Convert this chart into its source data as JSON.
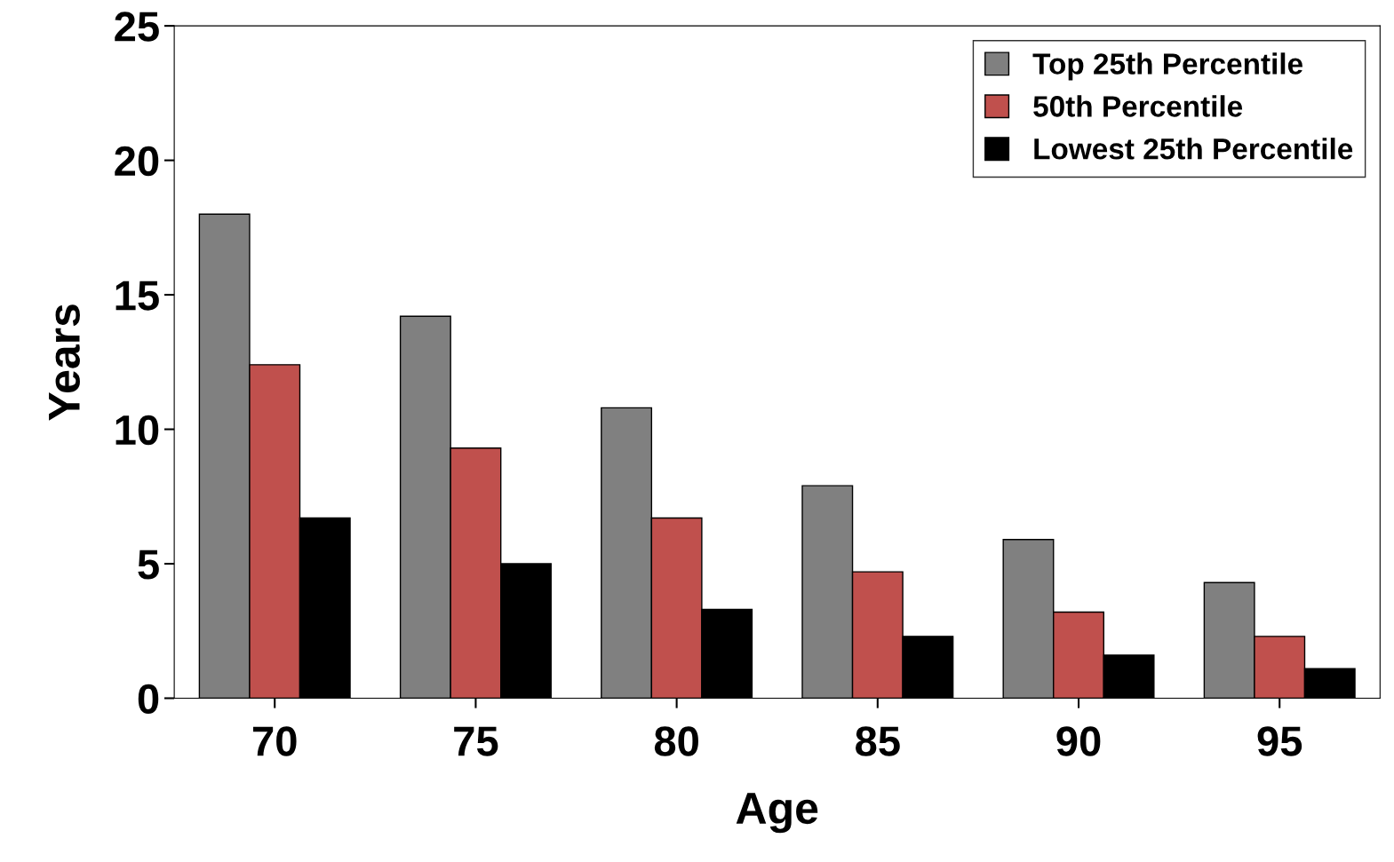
{
  "chart_data": {
    "type": "bar",
    "xlabel": "Age",
    "ylabel": "Years",
    "categories": [
      "70",
      "75",
      "80",
      "85",
      "90",
      "95"
    ],
    "series": [
      {
        "name": "Top 25th Percentile",
        "color": "#808080",
        "values": [
          18.0,
          14.2,
          10.8,
          7.9,
          5.9,
          4.3
        ]
      },
      {
        "name": "50th Percentile",
        "color": "#c0504d",
        "values": [
          12.4,
          9.3,
          6.7,
          4.7,
          3.2,
          2.3
        ]
      },
      {
        "name": "Lowest 25th Percentile",
        "color": "#000000",
        "values": [
          6.7,
          5.0,
          3.3,
          2.3,
          1.6,
          1.1
        ]
      }
    ],
    "ylim": [
      0,
      25
    ],
    "yticks": [
      0,
      5,
      10,
      15,
      20,
      25
    ],
    "grid": false,
    "legend": "top right"
  }
}
